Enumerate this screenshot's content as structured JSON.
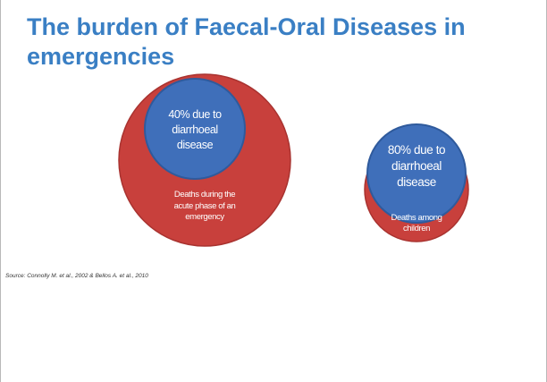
{
  "slide": {
    "title_line1": "The burden of Faecal-Oral Diseases in",
    "title_line2": "emergencies",
    "source": "Source: Connolly M. et al., 2002 & Bellos A. et al., 2010"
  },
  "diagram": {
    "left": {
      "inner_line1": "40% due to",
      "inner_line2": "diarrhoeal",
      "inner_line3": "disease",
      "outer_line1": "Deaths during the",
      "outer_line2": "acute phase of an",
      "outer_line3": "emergency"
    },
    "right": {
      "inner_line1": "80% due to",
      "inner_line2": "diarrhoeal",
      "inner_line3": "disease",
      "outer_line1": "Deaths among",
      "outer_line2": "children"
    }
  },
  "colors": {
    "title": "#3a7fc4",
    "outer_circle": "#c8403c",
    "inner_circle": "#3f6fba"
  }
}
